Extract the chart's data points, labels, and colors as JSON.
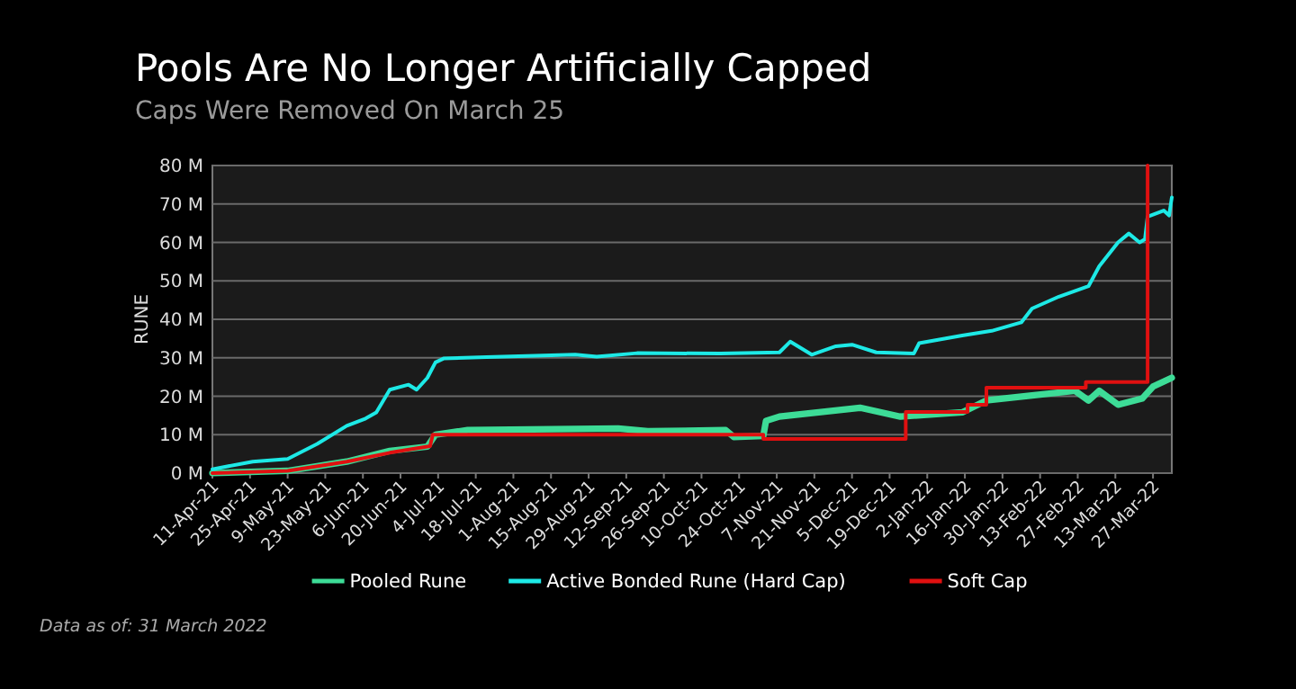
{
  "chart_data": {
    "type": "line",
    "title": "Pools Are No Longer Artificially Capped",
    "subtitle": "Caps Were Removed On March 25",
    "ylabel": "RUNE",
    "annotations": [
      "Data as of: 31 March 2022"
    ],
    "xlim": [
      "2021-04-11",
      "2022-04-03"
    ],
    "xticks": [
      {
        "value": "2021-04-11",
        "label": "11-Apr-21"
      },
      {
        "value": "2021-04-25",
        "label": "25-Apr-21"
      },
      {
        "value": "2021-05-09",
        "label": "9-May-21"
      },
      {
        "value": "2021-05-23",
        "label": "23-May-21"
      },
      {
        "value": "2021-06-06",
        "label": "6-Jun-21"
      },
      {
        "value": "2021-06-20",
        "label": "20-Jun-21"
      },
      {
        "value": "2021-07-04",
        "label": "4-Jul-21"
      },
      {
        "value": "2021-07-18",
        "label": "18-Jul-21"
      },
      {
        "value": "2021-08-01",
        "label": "1-Aug-21"
      },
      {
        "value": "2021-08-15",
        "label": "15-Aug-21"
      },
      {
        "value": "2021-08-29",
        "label": "29-Aug-21"
      },
      {
        "value": "2021-09-12",
        "label": "12-Sep-21"
      },
      {
        "value": "2021-09-26",
        "label": "26-Sep-21"
      },
      {
        "value": "2021-10-10",
        "label": "10-Oct-21"
      },
      {
        "value": "2021-10-24",
        "label": "24-Oct-21"
      },
      {
        "value": "2021-11-07",
        "label": "7-Nov-21"
      },
      {
        "value": "2021-11-21",
        "label": "21-Nov-21"
      },
      {
        "value": "2021-12-05",
        "label": "5-Dec-21"
      },
      {
        "value": "2021-12-19",
        "label": "19-Dec-21"
      },
      {
        "value": "2022-01-02",
        "label": "2-Jan-22"
      },
      {
        "value": "2022-01-16",
        "label": "16-Jan-22"
      },
      {
        "value": "2022-01-30",
        "label": "30-Jan-22"
      },
      {
        "value": "2022-02-13",
        "label": "13-Feb-22"
      },
      {
        "value": "2022-02-27",
        "label": "27-Feb-22"
      },
      {
        "value": "2022-03-13",
        "label": "13-Mar-22"
      },
      {
        "value": "2022-03-27",
        "label": "27-Mar-22"
      }
    ],
    "ylim": [
      0,
      80
    ],
    "yticks": [
      {
        "value": 0,
        "label": "0 M"
      },
      {
        "value": 10,
        "label": "10 M"
      },
      {
        "value": 20,
        "label": "20 M"
      },
      {
        "value": 30,
        "label": "30 M"
      },
      {
        "value": 40,
        "label": "40 M"
      },
      {
        "value": 50,
        "label": "50 M"
      },
      {
        "value": 60,
        "label": "60 M"
      },
      {
        "value": 70,
        "label": "70 M"
      },
      {
        "value": 80,
        "label": "80 M"
      }
    ],
    "grid": "y",
    "legend": "bottom",
    "marker": "none",
    "line_style": "solid",
    "series": [
      {
        "name": "Pooled Rune",
        "color": "#3ddc97",
        "x": [
          "2021-04-11",
          "2021-05-09",
          "2021-05-31",
          "2021-06-16",
          "2021-06-30",
          "2021-07-03",
          "2021-07-15",
          "2021-09-09",
          "2021-09-20",
          "2021-10-19",
          "2021-10-22",
          "2021-11-02",
          "2021-11-03",
          "2021-11-08",
          "2021-12-08",
          "2021-12-23",
          "2022-01-15",
          "2022-01-24",
          "2022-02-10",
          "2022-02-26",
          "2022-03-03",
          "2022-03-07",
          "2022-03-14",
          "2022-03-23",
          "2022-03-27",
          "2022-04-03"
        ],
        "values": [
          0,
          0.6,
          3,
          5.8,
          6.9,
          10,
          11.2,
          11.6,
          10.9,
          11.2,
          9.4,
          9.7,
          13.6,
          14.7,
          17,
          14.7,
          15.8,
          18.9,
          20.2,
          21.4,
          18.9,
          21.4,
          17.8,
          19.4,
          22.5,
          24.8
        ]
      },
      {
        "name": "Active Bonded Rune (Hard Cap)",
        "color": "#1de9e6",
        "x": [
          "2021-04-11",
          "2021-04-26",
          "2021-05-09",
          "2021-05-20",
          "2021-05-31",
          "2021-06-07",
          "2021-06-11",
          "2021-06-16",
          "2021-06-23",
          "2021-06-26",
          "2021-06-30",
          "2021-07-03",
          "2021-07-06",
          "2021-07-22",
          "2021-08-24",
          "2021-09-01",
          "2021-09-16",
          "2021-10-17",
          "2021-11-08",
          "2021-11-12",
          "2021-11-20",
          "2021-11-29",
          "2021-12-05",
          "2021-12-14",
          "2021-12-28",
          "2021-12-30",
          "2022-01-15",
          "2022-01-26",
          "2022-02-06",
          "2022-02-10",
          "2022-02-20",
          "2022-03-03",
          "2022-03-07",
          "2022-03-14",
          "2022-03-18",
          "2022-03-22",
          "2022-03-24",
          "2022-03-25",
          "2022-03-31",
          "2022-04-02",
          "2022-04-03"
        ],
        "values": [
          1,
          3,
          3.7,
          7.6,
          12.3,
          14.2,
          15.8,
          21.7,
          23,
          21.7,
          24.8,
          28.8,
          29.8,
          30.2,
          30.8,
          30.3,
          31.2,
          31.1,
          31.4,
          34.2,
          30.8,
          33,
          33.4,
          31.4,
          31.1,
          33.8,
          35.8,
          37,
          39.2,
          42.8,
          45.9,
          48.6,
          53.8,
          60,
          62.3,
          60,
          60.8,
          66.7,
          68.3,
          67,
          71.7
        ]
      },
      {
        "name": "Soft Cap",
        "color": "#e01010",
        "x": [
          "2021-04-11",
          "2021-05-09",
          "2021-05-31",
          "2021-06-16",
          "2021-06-30",
          "2021-07-01",
          "2021-07-02",
          "2021-11-02",
          "2021-11-02",
          "2021-12-25",
          "2021-12-25",
          "2022-01-17",
          "2022-01-17",
          "2022-01-24",
          "2022-01-24",
          "2022-03-02",
          "2022-03-02",
          "2022-03-25",
          "2022-03-25"
        ],
        "values": [
          0,
          0.6,
          3,
          5.3,
          6.9,
          7,
          10,
          10,
          8.9,
          8.9,
          15.9,
          15.9,
          17.8,
          17.8,
          22.2,
          22.2,
          23.7,
          23.7,
          80
        ]
      }
    ]
  }
}
